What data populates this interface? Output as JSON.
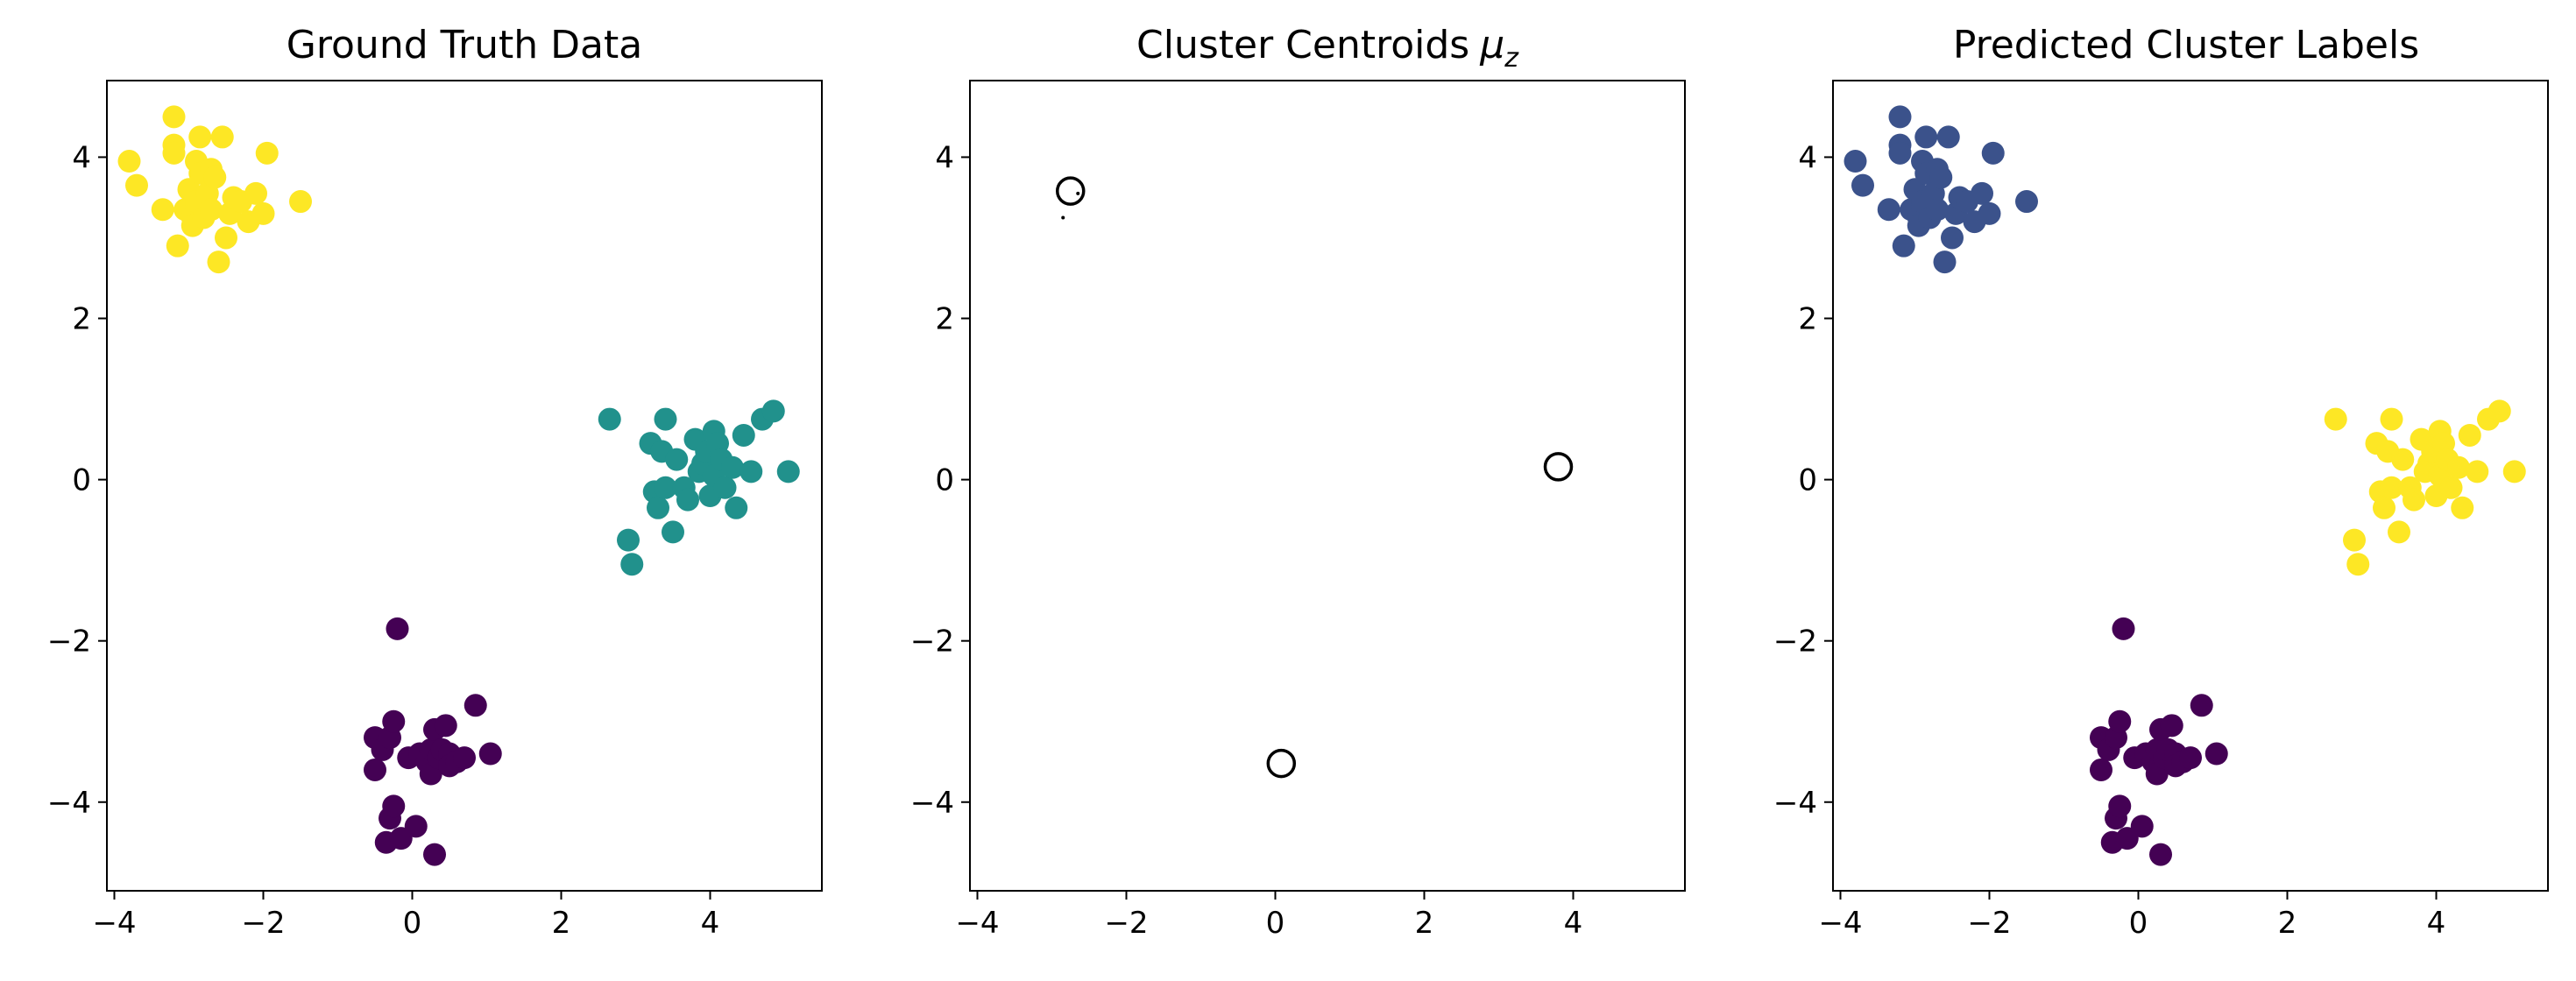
{
  "chart_data": [
    {
      "type": "scatter",
      "title": "Ground Truth Data",
      "xlim": [
        -4.1,
        5.5
      ],
      "ylim": [
        -5.1,
        4.95
      ],
      "xticks": [
        -4,
        -2,
        0,
        2,
        4
      ],
      "yticks": [
        -4,
        -2,
        0,
        2,
        4
      ],
      "xticklabels": [
        "−4",
        "−2",
        "0",
        "2",
        "4"
      ],
      "yticklabels": [
        "−4",
        "−2",
        "0",
        "2",
        "4"
      ],
      "grid": false,
      "series": [
        {
          "color": "#fde725",
          "points": [
            [
              -3.8,
              3.95
            ],
            [
              -3.7,
              3.65
            ],
            [
              -3.35,
              3.35
            ],
            [
              -3.2,
              4.5
            ],
            [
              -3.2,
              4.15
            ],
            [
              -3.2,
              4.05
            ],
            [
              -3.15,
              2.9
            ],
            [
              -3.05,
              3.35
            ],
            [
              -3.0,
              3.6
            ],
            [
              -2.95,
              3.25
            ],
            [
              -2.95,
              3.15
            ],
            [
              -2.9,
              3.95
            ],
            [
              -2.9,
              3.45
            ],
            [
              -2.85,
              4.25
            ],
            [
              -2.85,
              3.8
            ],
            [
              -2.8,
              3.25
            ],
            [
              -2.75,
              3.55
            ],
            [
              -2.7,
              3.35
            ],
            [
              -2.7,
              3.85
            ],
            [
              -2.65,
              3.75
            ],
            [
              -2.6,
              2.7
            ],
            [
              -2.55,
              4.25
            ],
            [
              -2.5,
              3.0
            ],
            [
              -2.45,
              3.3
            ],
            [
              -2.4,
              3.5
            ],
            [
              -2.3,
              3.45
            ],
            [
              -2.2,
              3.2
            ],
            [
              -2.1,
              3.55
            ],
            [
              -2.0,
              3.3
            ],
            [
              -1.95,
              4.05
            ],
            [
              -1.5,
              3.45
            ]
          ]
        },
        {
          "color": "#21918c",
          "points": [
            [
              2.65,
              0.75
            ],
            [
              2.9,
              -0.75
            ],
            [
              2.95,
              -1.05
            ],
            [
              3.2,
              0.45
            ],
            [
              3.25,
              -0.15
            ],
            [
              3.3,
              -0.35
            ],
            [
              3.35,
              0.35
            ],
            [
              3.4,
              -0.1
            ],
            [
              3.4,
              0.75
            ],
            [
              3.5,
              -0.65
            ],
            [
              3.55,
              0.25
            ],
            [
              3.65,
              -0.1
            ],
            [
              3.7,
              -0.25
            ],
            [
              3.8,
              0.5
            ],
            [
              3.85,
              0.1
            ],
            [
              3.9,
              0.2
            ],
            [
              3.95,
              0.35
            ],
            [
              4.0,
              -0.2
            ],
            [
              4.05,
              0.05
            ],
            [
              4.05,
              0.6
            ],
            [
              4.1,
              0.45
            ],
            [
              4.15,
              0.25
            ],
            [
              4.2,
              -0.1
            ],
            [
              4.3,
              0.15
            ],
            [
              4.35,
              -0.35
            ],
            [
              4.45,
              0.55
            ],
            [
              4.55,
              0.1
            ],
            [
              4.7,
              0.75
            ],
            [
              4.85,
              0.85
            ],
            [
              5.05,
              0.1
            ]
          ]
        },
        {
          "color": "#440154",
          "points": [
            [
              -0.5,
              -3.6
            ],
            [
              -0.5,
              -3.2
            ],
            [
              -0.4,
              -3.35
            ],
            [
              -0.35,
              -4.5
            ],
            [
              -0.3,
              -4.2
            ],
            [
              -0.3,
              -3.2
            ],
            [
              -0.25,
              -4.05
            ],
            [
              -0.25,
              -3.0
            ],
            [
              -0.2,
              -1.85
            ],
            [
              -0.15,
              -4.45
            ],
            [
              -0.05,
              -3.45
            ],
            [
              0.05,
              -4.3
            ],
            [
              0.1,
              -3.4
            ],
            [
              0.2,
              -3.5
            ],
            [
              0.25,
              -3.65
            ],
            [
              0.25,
              -3.35
            ],
            [
              0.3,
              -3.1
            ],
            [
              0.3,
              -4.65
            ],
            [
              0.35,
              -3.45
            ],
            [
              0.4,
              -3.35
            ],
            [
              0.45,
              -3.05
            ],
            [
              0.5,
              -3.4
            ],
            [
              0.5,
              -3.55
            ],
            [
              0.6,
              -3.5
            ],
            [
              0.7,
              -3.45
            ],
            [
              0.85,
              -2.8
            ],
            [
              1.05,
              -3.4
            ]
          ]
        }
      ]
    },
    {
      "type": "scatter",
      "title": "Cluster Centroids",
      "title_math": "μ",
      "title_sub": "z",
      "xlim": [
        -4.1,
        5.5
      ],
      "ylim": [
        -5.1,
        4.95
      ],
      "xticks": [
        -4,
        -2,
        0,
        2,
        4
      ],
      "yticks": [
        -4,
        -2,
        0,
        2,
        4
      ],
      "xticklabels": [
        "−4",
        "−2",
        "0",
        "2",
        "4"
      ],
      "yticklabels": [
        "−4",
        "−2",
        "0",
        "2",
        "4"
      ],
      "grid": false,
      "marker": "hollow-circle",
      "centroids": [
        [
          -2.75,
          3.58
        ],
        [
          0.08,
          -3.52
        ],
        [
          3.8,
          0.16
        ]
      ],
      "centroid_dots": [
        [
          -2.65,
          3.55
        ],
        [
          -2.85,
          3.25
        ]
      ]
    },
    {
      "type": "scatter",
      "title": "Predicted Cluster Labels",
      "xlim": [
        -4.1,
        5.5
      ],
      "ylim": [
        -5.1,
        4.95
      ],
      "xticks": [
        -4,
        -2,
        0,
        2,
        4
      ],
      "yticks": [
        -4,
        -2,
        0,
        2,
        4
      ],
      "xticklabels": [
        "−4",
        "−2",
        "0",
        "2",
        "4"
      ],
      "yticklabels": [
        "−4",
        "−2",
        "0",
        "2",
        "4"
      ],
      "grid": false,
      "series": [
        {
          "color": "#3b528b",
          "points": [
            [
              -3.8,
              3.95
            ],
            [
              -3.7,
              3.65
            ],
            [
              -3.35,
              3.35
            ],
            [
              -3.2,
              4.5
            ],
            [
              -3.2,
              4.15
            ],
            [
              -3.2,
              4.05
            ],
            [
              -3.15,
              2.9
            ],
            [
              -3.05,
              3.35
            ],
            [
              -3.0,
              3.6
            ],
            [
              -2.95,
              3.25
            ],
            [
              -2.95,
              3.15
            ],
            [
              -2.9,
              3.95
            ],
            [
              -2.9,
              3.45
            ],
            [
              -2.85,
              4.25
            ],
            [
              -2.85,
              3.8
            ],
            [
              -2.8,
              3.25
            ],
            [
              -2.75,
              3.55
            ],
            [
              -2.7,
              3.35
            ],
            [
              -2.7,
              3.85
            ],
            [
              -2.65,
              3.75
            ],
            [
              -2.6,
              2.7
            ],
            [
              -2.55,
              4.25
            ],
            [
              -2.5,
              3.0
            ],
            [
              -2.45,
              3.3
            ],
            [
              -2.4,
              3.5
            ],
            [
              -2.3,
              3.45
            ],
            [
              -2.2,
              3.2
            ],
            [
              -2.1,
              3.55
            ],
            [
              -2.0,
              3.3
            ],
            [
              -1.95,
              4.05
            ],
            [
              -1.5,
              3.45
            ]
          ]
        },
        {
          "color": "#fde725",
          "points": [
            [
              2.65,
              0.75
            ],
            [
              2.9,
              -0.75
            ],
            [
              2.95,
              -1.05
            ],
            [
              3.2,
              0.45
            ],
            [
              3.25,
              -0.15
            ],
            [
              3.3,
              -0.35
            ],
            [
              3.35,
              0.35
            ],
            [
              3.4,
              -0.1
            ],
            [
              3.4,
              0.75
            ],
            [
              3.5,
              -0.65
            ],
            [
              3.55,
              0.25
            ],
            [
              3.65,
              -0.1
            ],
            [
              3.7,
              -0.25
            ],
            [
              3.8,
              0.5
            ],
            [
              3.85,
              0.1
            ],
            [
              3.9,
              0.2
            ],
            [
              3.95,
              0.35
            ],
            [
              4.0,
              -0.2
            ],
            [
              4.05,
              0.05
            ],
            [
              4.05,
              0.6
            ],
            [
              4.1,
              0.45
            ],
            [
              4.15,
              0.25
            ],
            [
              4.2,
              -0.1
            ],
            [
              4.3,
              0.15
            ],
            [
              4.35,
              -0.35
            ],
            [
              4.45,
              0.55
            ],
            [
              4.55,
              0.1
            ],
            [
              4.7,
              0.75
            ],
            [
              4.85,
              0.85
            ],
            [
              5.05,
              0.1
            ]
          ]
        },
        {
          "color": "#440154",
          "points": [
            [
              -0.5,
              -3.6
            ],
            [
              -0.5,
              -3.2
            ],
            [
              -0.4,
              -3.35
            ],
            [
              -0.35,
              -4.5
            ],
            [
              -0.3,
              -4.2
            ],
            [
              -0.3,
              -3.2
            ],
            [
              -0.25,
              -4.05
            ],
            [
              -0.25,
              -3.0
            ],
            [
              -0.2,
              -1.85
            ],
            [
              -0.15,
              -4.45
            ],
            [
              -0.05,
              -3.45
            ],
            [
              0.05,
              -4.3
            ],
            [
              0.1,
              -3.4
            ],
            [
              0.2,
              -3.5
            ],
            [
              0.25,
              -3.65
            ],
            [
              0.25,
              -3.35
            ],
            [
              0.3,
              -3.1
            ],
            [
              0.3,
              -4.65
            ],
            [
              0.35,
              -3.45
            ],
            [
              0.4,
              -3.35
            ],
            [
              0.45,
              -3.05
            ],
            [
              0.5,
              -3.4
            ],
            [
              0.5,
              -3.55
            ],
            [
              0.6,
              -3.5
            ],
            [
              0.7,
              -3.45
            ],
            [
              0.85,
              -2.8
            ],
            [
              1.05,
              -3.4
            ]
          ]
        }
      ]
    }
  ]
}
